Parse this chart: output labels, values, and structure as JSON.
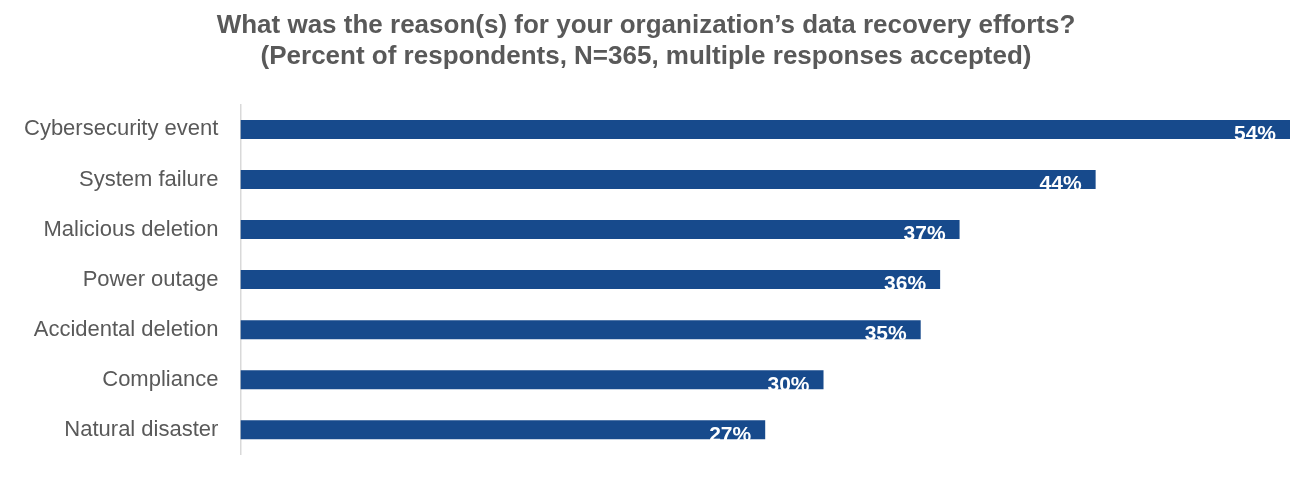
{
  "chart_data": {
    "type": "bar",
    "orientation": "horizontal",
    "title": "What was the reason(s) for your organization’s data recovery efforts?\n(Percent of respondents, N=365, multiple responses accepted)",
    "categories": [
      "Cybersecurity event",
      "System failure",
      "Malicious deletion",
      "Power outage",
      "Accidental deletion",
      "Compliance",
      "Natural disaster"
    ],
    "values": [
      54,
      44,
      37,
      36,
      35,
      30,
      27
    ],
    "value_labels": [
      "54%",
      "44%",
      "37%",
      "36%",
      "35%",
      "30%",
      "27%"
    ],
    "color": "#174a8c",
    "xlim": [
      0,
      54
    ]
  }
}
